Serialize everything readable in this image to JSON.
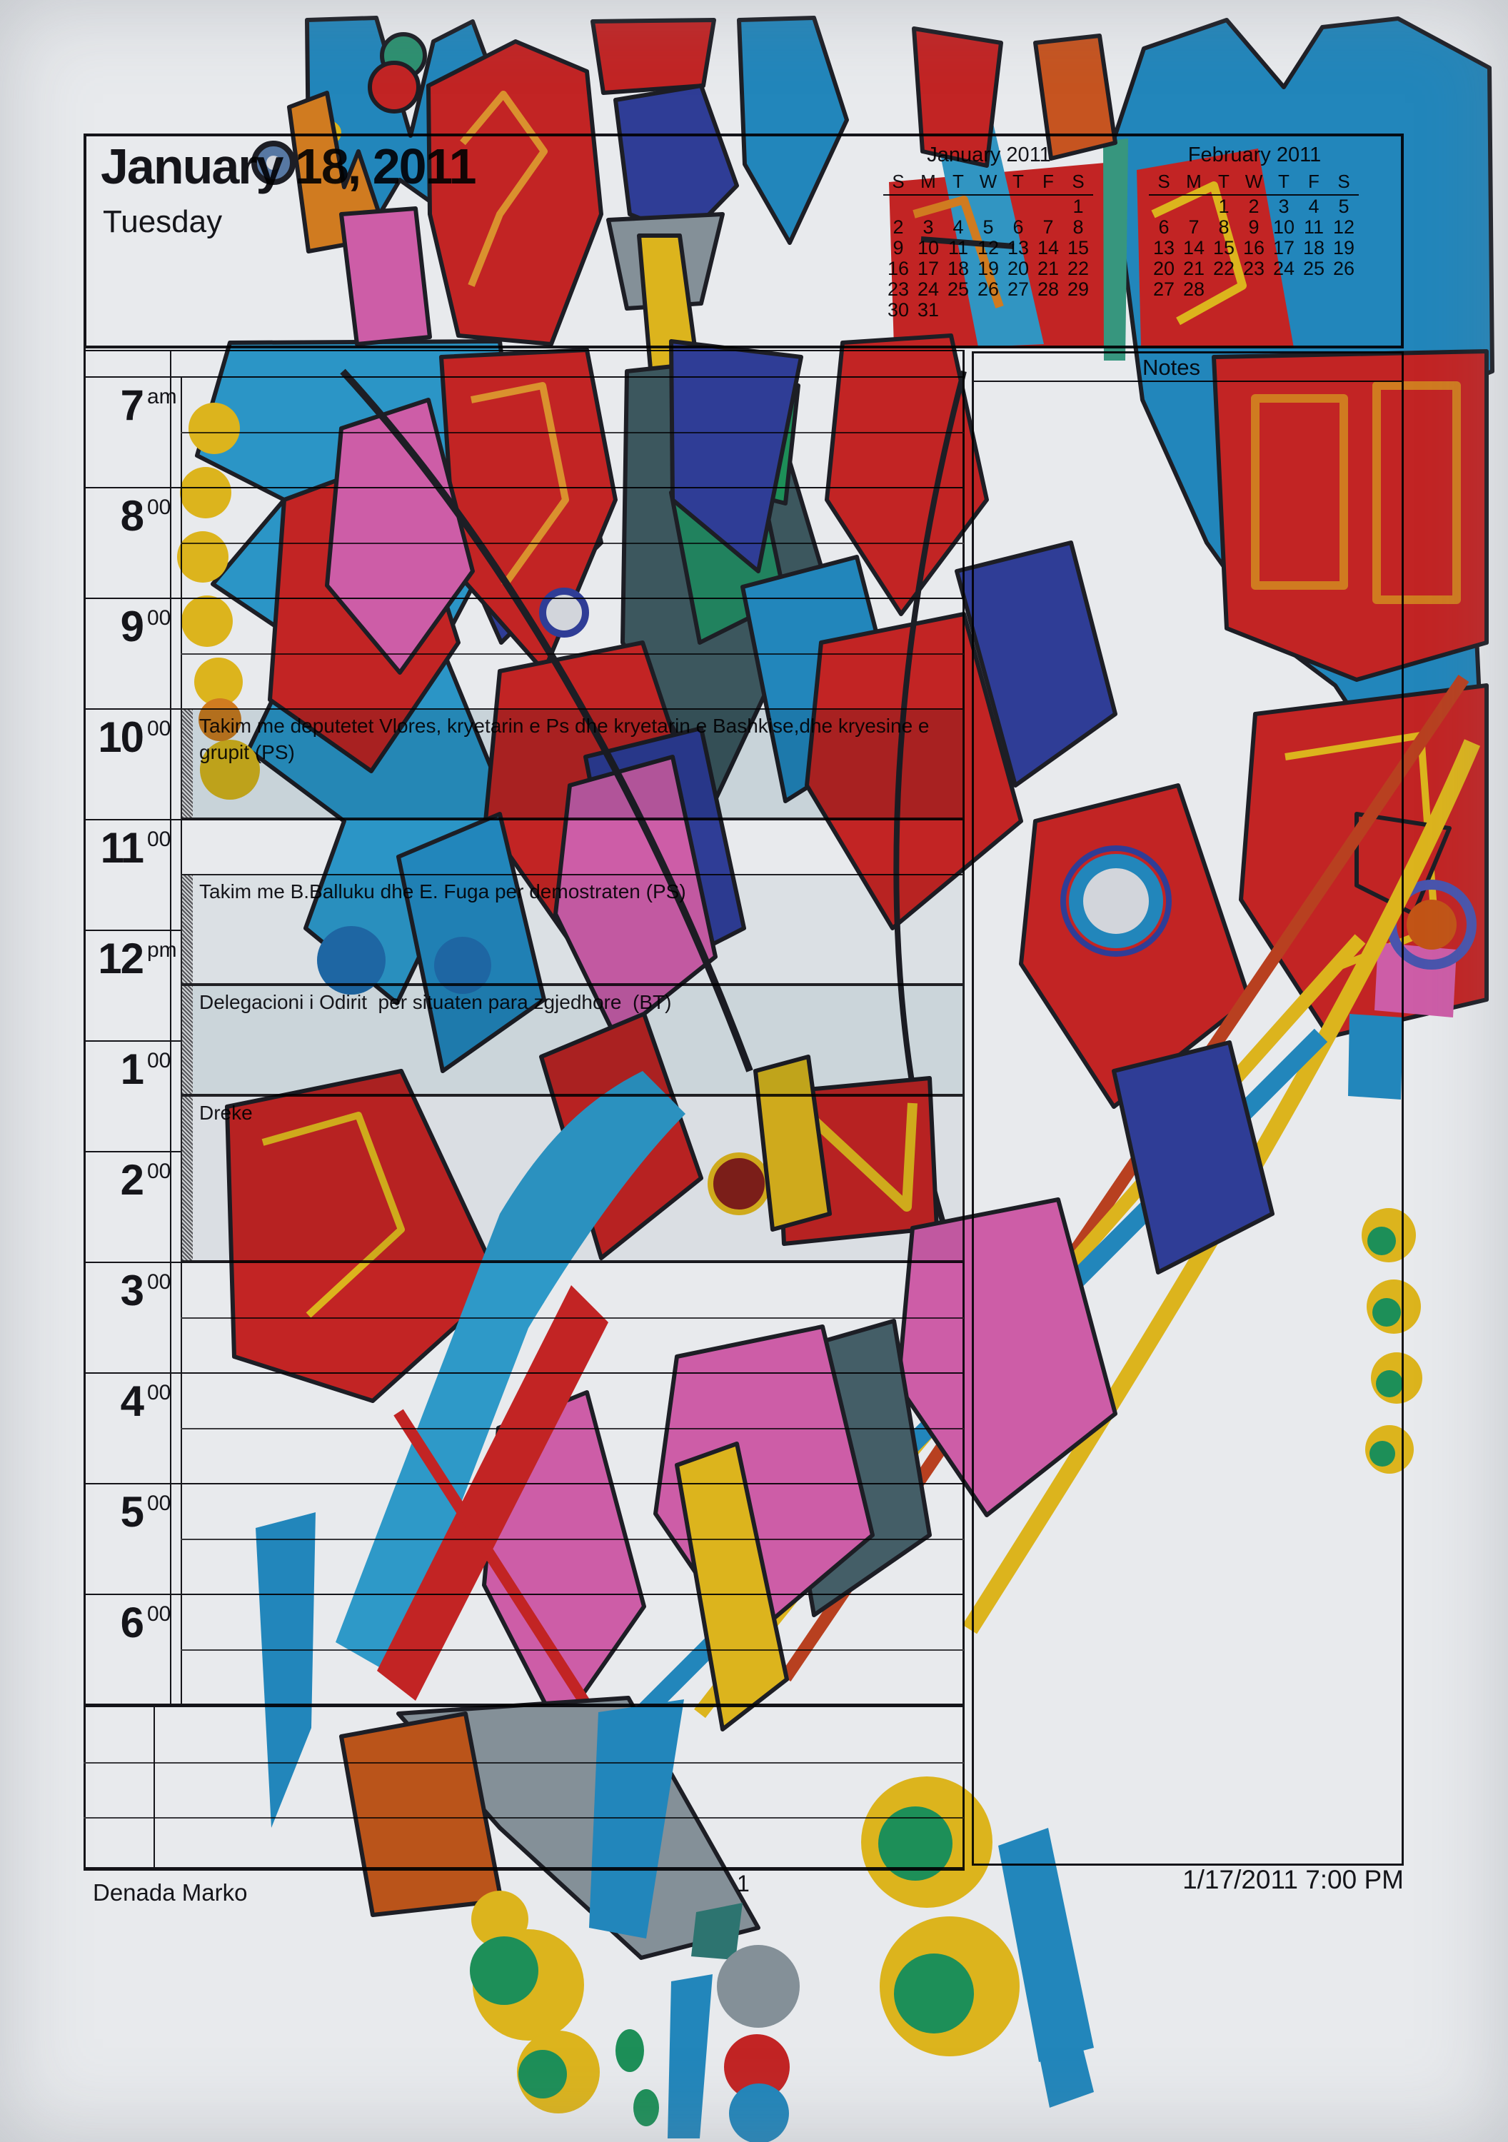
{
  "page": {
    "date_title": "January 18, 2011",
    "weekday": "Tuesday",
    "footer": {
      "owner": "Denada Marko",
      "page_number": "1",
      "printed": "1/17/2011 7:00 PM"
    }
  },
  "mini_calendars": [
    {
      "title": "January 2011",
      "day_headers": [
        "S",
        "M",
        "T",
        "W",
        "T",
        "F",
        "S"
      ],
      "weeks": [
        [
          "",
          "",
          "",
          "",
          "",
          "",
          "1"
        ],
        [
          "2",
          "3",
          "4",
          "5",
          "6",
          "7",
          "8"
        ],
        [
          "9",
          "10",
          "11",
          "12",
          "13",
          "14",
          "15"
        ],
        [
          "16",
          "17",
          "18",
          "19",
          "20",
          "21",
          "22"
        ],
        [
          "23",
          "24",
          "25",
          "26",
          "27",
          "28",
          "29"
        ],
        [
          "30",
          "31",
          "",
          "",
          "",
          "",
          ""
        ]
      ]
    },
    {
      "title": "February 2011",
      "day_headers": [
        "S",
        "M",
        "T",
        "W",
        "T",
        "F",
        "S"
      ],
      "weeks": [
        [
          "",
          "",
          "1",
          "2",
          "3",
          "4",
          "5"
        ],
        [
          "6",
          "7",
          "8",
          "9",
          "10",
          "11",
          "12"
        ],
        [
          "13",
          "14",
          "15",
          "16",
          "17",
          "18",
          "19"
        ],
        [
          "20",
          "21",
          "22",
          "23",
          "24",
          "25",
          "26"
        ],
        [
          "27",
          "28",
          "",
          "",
          "",
          "",
          ""
        ]
      ]
    }
  ],
  "notes_panel": {
    "label": "Notes"
  },
  "schedule": {
    "time_slots": [
      {
        "hour": "7",
        "suffix": "am"
      },
      {
        "hour": "8",
        "suffix": "00"
      },
      {
        "hour": "9",
        "suffix": "00"
      },
      {
        "hour": "10",
        "suffix": "00"
      },
      {
        "hour": "11",
        "suffix": "00"
      },
      {
        "hour": "12",
        "suffix": "pm"
      },
      {
        "hour": "1",
        "suffix": "00"
      },
      {
        "hour": "2",
        "suffix": "00"
      },
      {
        "hour": "3",
        "suffix": "00"
      },
      {
        "hour": "4",
        "suffix": "00"
      },
      {
        "hour": "5",
        "suffix": "00"
      },
      {
        "hour": "6",
        "suffix": "00"
      }
    ],
    "appointments": [
      {
        "text": "Takim me deputetet Vlores, kryetarin e Ps dhe kryetarin e Bashkise,dhe kryesine e grupit (PS)"
      },
      {
        "text": "Takim me B.Balluku dhe E. Fuga per demostraten (PS)"
      },
      {
        "text": "Delegacioni i Odirit  per situaten para zgjedhore  (BT)"
      },
      {
        "text": "Dreke"
      }
    ]
  },
  "artwork": {
    "description": "Abstract marker drawing in red, blue, magenta, yellow, orange, green, slate and gray painted over the printed planner page",
    "palette": {
      "red": "#d5201f",
      "cyan_blue": "#1e8fc7",
      "navy": "#2c3c9e",
      "magenta": "#e160b2",
      "orange": "#e5821a",
      "yellow": "#f2c217",
      "green": "#17995a",
      "slate": "#3c5a60",
      "gray": "#8d9aa1",
      "outline": "#181820"
    }
  }
}
